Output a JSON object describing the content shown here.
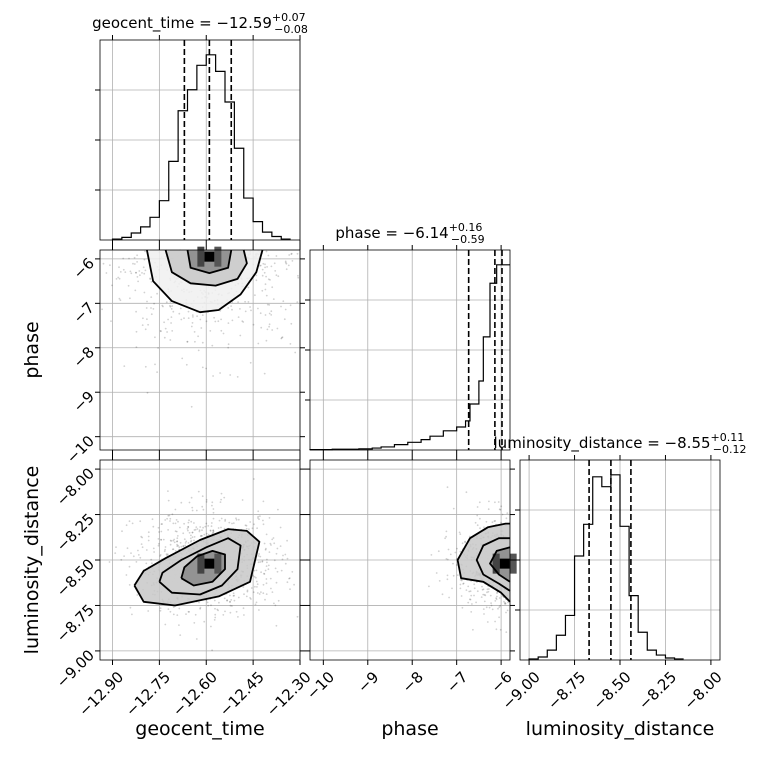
{
  "chart_data": {
    "type": "corner",
    "grid": true,
    "parameters": [
      {
        "name": "geocent_time",
        "axis_label": "geocent_time",
        "title": {
          "prefix": "geocent_time = ",
          "value": "−12.59",
          "upper": "+0.07",
          "lower": "−0.08"
        },
        "range": [
          -12.94,
          -12.3
        ],
        "ticks": [
          -12.9,
          -12.75,
          -12.6,
          -12.45,
          -12.3
        ],
        "tick_labels": [
          "−12.90",
          "−12.75",
          "−12.60",
          "−12.45",
          "−12.30"
        ],
        "quantiles": [
          -12.67,
          -12.59,
          -12.52
        ],
        "hist_bin_edges": [
          -12.9,
          -12.87,
          -12.84,
          -12.81,
          -12.78,
          -12.75,
          -12.72,
          -12.69,
          -12.66,
          -12.63,
          -12.6,
          -12.57,
          -12.54,
          -12.51,
          -12.48,
          -12.45,
          -12.42,
          -12.39,
          -12.36,
          -12.33
        ],
        "hist_counts": [
          1,
          3,
          8,
          15,
          26,
          45,
          90,
          148,
          172,
          200,
          212,
          193,
          158,
          105,
          48,
          21,
          9,
          4,
          1
        ]
      },
      {
        "name": "phase",
        "axis_label": "phase",
        "title": {
          "prefix": "phase = ",
          "value": "−6.14",
          "upper": "+0.16",
          "lower": "−0.59"
        },
        "range": [
          -10.3,
          -5.8
        ],
        "ticks": [
          -10,
          -9,
          -8,
          -7,
          -6
        ],
        "tick_labels": [
          "−10",
          "−9",
          "−8",
          "−7",
          "−6"
        ],
        "quantiles": [
          -6.73,
          -6.14,
          -5.98
        ],
        "hist_bin_edges": [
          -10.3,
          -9.8,
          -9.2,
          -8.9,
          -8.7,
          -8.4,
          -8.1,
          -7.8,
          -7.6,
          -7.3,
          -7.0,
          -6.8,
          -6.7,
          -6.5,
          -6.4,
          -6.25,
          -6.1,
          -5.95,
          -5.8
        ],
        "hist_counts": [
          1,
          2,
          3,
          5,
          8,
          14,
          20,
          27,
          36,
          50,
          60,
          76,
          120,
          180,
          295,
          435,
          483,
          483
        ]
      },
      {
        "name": "luminosity_distance",
        "axis_label": "luminosity_distance",
        "title": {
          "prefix": "luminosity_distance = ",
          "value": "−8.55",
          "upper": "+0.11",
          "lower": "−0.12"
        },
        "range": [
          -9.05,
          -7.95
        ],
        "ticks": [
          -9.0,
          -8.75,
          -8.5,
          -8.25,
          -8.0
        ],
        "tick_labels": [
          "−9.00",
          "−8.75",
          "−8.50",
          "−8.25",
          "−8.00"
        ],
        "quantiles": [
          -8.67,
          -8.55,
          -8.44
        ],
        "hist_bin_edges": [
          -9.0,
          -8.95,
          -8.9,
          -8.85,
          -8.8,
          -8.75,
          -8.7,
          -8.65,
          -8.6,
          -8.55,
          -8.5,
          -8.45,
          -8.4,
          -8.35,
          -8.3,
          -8.25,
          -8.2,
          -8.15
        ],
        "hist_counts": [
          1,
          3,
          10,
          25,
          45,
          105,
          137,
          185,
          175,
          187,
          135,
          65,
          28,
          10,
          5,
          2,
          1
        ]
      }
    ],
    "pairs": [
      {
        "x": "geocent_time",
        "y": "phase",
        "ylim": [
          -10.3,
          -5.8
        ],
        "peak": [
          -12.59,
          -5.95
        ],
        "contours": [
          [
            [
              -12.73,
              -5.8
            ],
            [
              -12.71,
              -6.3
            ],
            [
              -12.65,
              -6.55
            ],
            [
              -12.57,
              -6.6
            ],
            [
              -12.5,
              -6.45
            ],
            [
              -12.47,
              -6.1
            ],
            [
              -12.48,
              -5.8
            ]
          ],
          [
            [
              -12.79,
              -5.8
            ],
            [
              -12.77,
              -6.5
            ],
            [
              -12.71,
              -6.95
            ],
            [
              -12.62,
              -7.2
            ],
            [
              -12.56,
              -7.15
            ],
            [
              -12.49,
              -6.8
            ],
            [
              -12.44,
              -6.3
            ],
            [
              -12.42,
              -5.8
            ]
          ],
          [
            [
              -12.66,
              -5.8
            ],
            [
              -12.65,
              -6.2
            ],
            [
              -12.59,
              -6.32
            ],
            [
              -12.53,
              -6.2
            ],
            [
              -12.52,
              -5.8
            ]
          ]
        ]
      },
      {
        "x": "geocent_time",
        "y": "luminosity_distance",
        "ylim": [
          -9.05,
          -7.95
        ],
        "peak": [
          -12.59,
          -8.52
        ],
        "contours": [
          [
            [
              -12.83,
              -8.64
            ],
            [
              -12.8,
              -8.73
            ],
            [
              -12.7,
              -8.75
            ],
            [
              -12.56,
              -8.7
            ],
            [
              -12.46,
              -8.62
            ],
            [
              -12.43,
              -8.4
            ],
            [
              -12.47,
              -8.34
            ],
            [
              -12.53,
              -8.33
            ],
            [
              -12.62,
              -8.39
            ],
            [
              -12.73,
              -8.49
            ],
            [
              -12.8,
              -8.56
            ],
            [
              -12.83,
              -8.64
            ]
          ],
          [
            [
              -12.75,
              -8.62
            ],
            [
              -12.71,
              -8.68
            ],
            [
              -12.62,
              -8.69
            ],
            [
              -12.55,
              -8.64
            ],
            [
              -12.5,
              -8.55
            ],
            [
              -12.49,
              -8.42
            ],
            [
              -12.53,
              -8.38
            ],
            [
              -12.6,
              -8.43
            ],
            [
              -12.68,
              -8.5
            ],
            [
              -12.74,
              -8.57
            ],
            [
              -12.75,
              -8.62
            ]
          ],
          [
            [
              -12.68,
              -8.6
            ],
            [
              -12.64,
              -8.64
            ],
            [
              -12.58,
              -8.62
            ],
            [
              -12.54,
              -8.55
            ],
            [
              -12.54,
              -8.47
            ],
            [
              -12.58,
              -8.45
            ],
            [
              -12.63,
              -8.48
            ],
            [
              -12.67,
              -8.54
            ],
            [
              -12.68,
              -8.6
            ]
          ]
        ]
      },
      {
        "x": "phase",
        "y": "luminosity_distance",
        "ylim": [
          -9.05,
          -7.95
        ],
        "peak": [
          -5.92,
          -8.52
        ],
        "contours": [
          [
            [
              -5.8,
              -8.73
            ],
            [
              -6.0,
              -8.68
            ],
            [
              -6.4,
              -8.62
            ],
            [
              -6.9,
              -8.6
            ],
            [
              -6.98,
              -8.5
            ],
            [
              -6.7,
              -8.38
            ],
            [
              -6.3,
              -8.32
            ],
            [
              -5.9,
              -8.3
            ],
            [
              -5.8,
              -8.3
            ]
          ],
          [
            [
              -5.8,
              -8.67
            ],
            [
              -6.05,
              -8.63
            ],
            [
              -6.4,
              -8.58
            ],
            [
              -6.55,
              -8.5
            ],
            [
              -6.4,
              -8.42
            ],
            [
              -6.05,
              -8.38
            ],
            [
              -5.8,
              -8.38
            ]
          ],
          [
            [
              -5.8,
              -8.62
            ],
            [
              -6.05,
              -8.58
            ],
            [
              -6.25,
              -8.52
            ],
            [
              -6.1,
              -8.45
            ],
            [
              -5.8,
              -8.43
            ]
          ]
        ]
      }
    ]
  }
}
